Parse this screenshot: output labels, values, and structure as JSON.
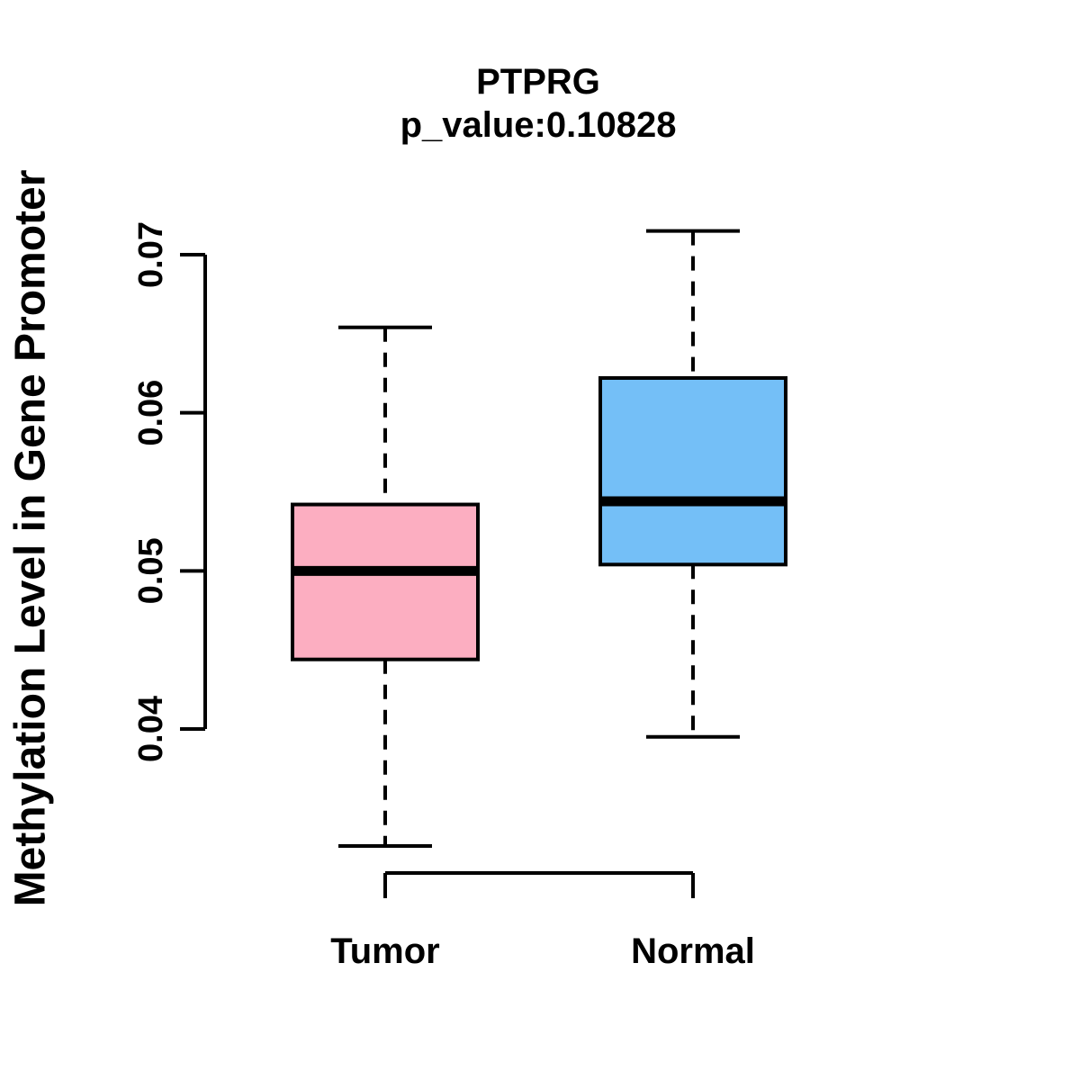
{
  "title": "PTPRG",
  "subtitle": "p_value:0.10828",
  "ylabel": "Methylation Level in Gene Promoter",
  "colors": {
    "tumor_fill": "#FCAEC1",
    "normal_fill": "#74BFF7",
    "line": "#000000",
    "background": "#ffffff"
  },
  "chart_data": {
    "type": "boxplot",
    "title": "PTPRG",
    "subtitle": "p_value:0.10828",
    "ylabel": "Methylation Level in Gene Promoter",
    "xlabel": "",
    "categories": [
      "Tumor",
      "Normal"
    ],
    "series": [
      {
        "name": "Tumor",
        "min": 0.0326,
        "q1": 0.0444,
        "median": 0.05,
        "q3": 0.0542,
        "max": 0.0654,
        "color": "#FCAEC1"
      },
      {
        "name": "Normal",
        "min": 0.0395,
        "q1": 0.0504,
        "median": 0.0544,
        "q3": 0.0622,
        "max": 0.0715,
        "color": "#74BFF7"
      }
    ],
    "yticks": [
      0.04,
      0.05,
      0.06,
      0.07
    ],
    "ytick_labels": [
      "0.04",
      "0.05",
      "0.06",
      "0.07"
    ],
    "ylim": [
      0.031,
      0.0731
    ],
    "grid": false,
    "legend": "none",
    "whisker_style": "dashed"
  }
}
